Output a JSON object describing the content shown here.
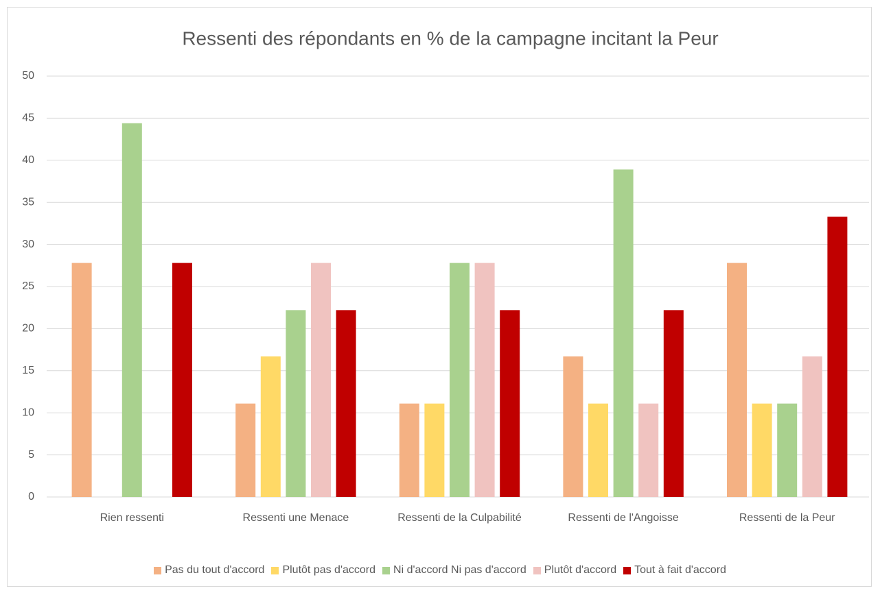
{
  "chart_data": {
    "type": "bar",
    "title": "Ressenti des répondants en % de la campagne incitant la Peur",
    "categories": [
      "Rien ressenti",
      "Ressenti une Menace",
      "Ressenti de la Culpabilité",
      "Ressenti de l'Angoisse",
      "Ressenti de la Peur"
    ],
    "series": [
      {
        "name": "Pas du tout d'accord",
        "color": "#f4b183",
        "values": [
          27.8,
          11.1,
          11.1,
          16.7,
          27.8
        ]
      },
      {
        "name": "Plutôt pas d'accord",
        "color": "#ffd966",
        "values": [
          0,
          16.7,
          11.1,
          11.1,
          11.1
        ]
      },
      {
        "name": "Ni d'accord Ni pas d'accord",
        "color": "#a9d18e",
        "values": [
          44.4,
          22.2,
          27.8,
          38.9,
          11.1
        ]
      },
      {
        "name": "Plutôt d'accord",
        "color": "#f0c3c0",
        "values": [
          0,
          27.8,
          27.8,
          11.1,
          16.7
        ]
      },
      {
        "name": "Tout à fait d'accord",
        "color": "#c00000",
        "values": [
          27.8,
          22.2,
          22.2,
          22.2,
          33.3
        ]
      }
    ],
    "ylim": [
      0,
      50
    ],
    "yticks": [
      0,
      5,
      10,
      15,
      20,
      25,
      30,
      35,
      40,
      45,
      50
    ],
    "grid": true,
    "legend": "bottom"
  }
}
